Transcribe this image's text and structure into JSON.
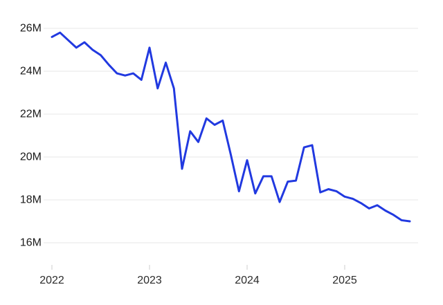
{
  "chart_data": {
    "type": "line",
    "title": "",
    "legend_position": "none",
    "grid": "horizontal-only",
    "background_color": "#ffffff",
    "line_color": "#2139e0",
    "grid_color": "#e7e7e7",
    "tick_mark_color": "#cccccc",
    "y_axis_text_color": "#1a1a1a",
    "x_axis_text_color": "#2b2b2b",
    "unit": "M",
    "ylim": [
      16,
      26
    ],
    "y_ticks": [
      {
        "value": 26,
        "label": "26M"
      },
      {
        "value": 24,
        "label": "24M"
      },
      {
        "value": 22,
        "label": "22M"
      },
      {
        "value": 20,
        "label": "20M"
      },
      {
        "value": 18,
        "label": "18M"
      },
      {
        "value": 16,
        "label": "16M"
      }
    ],
    "x_ticks": [
      {
        "label": "2022",
        "month_index": 0
      },
      {
        "label": "2023",
        "month_index": 12
      },
      {
        "label": "2024",
        "month_index": 24
      },
      {
        "label": "2025",
        "month_index": 36
      }
    ],
    "x": [
      "2022-01",
      "2022-02",
      "2022-03",
      "2022-04",
      "2022-05",
      "2022-06",
      "2022-07",
      "2022-08",
      "2022-09",
      "2022-10",
      "2022-11",
      "2022-12",
      "2023-01",
      "2023-02",
      "2023-03",
      "2023-04",
      "2023-05",
      "2023-06",
      "2023-07",
      "2023-08",
      "2023-09",
      "2023-10",
      "2023-11",
      "2023-12",
      "2024-01",
      "2024-02",
      "2024-03",
      "2024-04",
      "2024-05",
      "2024-06",
      "2024-07",
      "2024-08",
      "2024-09",
      "2024-10",
      "2024-11",
      "2024-12",
      "2025-01",
      "2025-02",
      "2025-03",
      "2025-04",
      "2025-05",
      "2025-06",
      "2025-07",
      "2025-08",
      "2025-09"
    ],
    "values": [
      25.6,
      25.8,
      25.45,
      25.1,
      25.35,
      25.0,
      24.75,
      24.3,
      23.9,
      23.8,
      23.9,
      23.6,
      25.1,
      23.2,
      24.4,
      23.2,
      19.45,
      21.2,
      20.7,
      21.8,
      21.5,
      21.7,
      20.1,
      18.4,
      19.85,
      18.3,
      19.1,
      19.1,
      17.9,
      18.85,
      18.9,
      20.45,
      20.55,
      18.35,
      18.5,
      18.4,
      18.15,
      18.05,
      17.85,
      17.6,
      17.75,
      17.5,
      17.3,
      17.05,
      17.0
    ]
  }
}
